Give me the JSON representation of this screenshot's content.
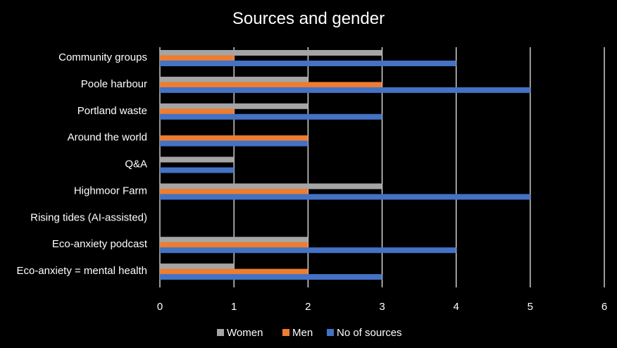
{
  "chart_data": {
    "type": "bar",
    "orientation": "horizontal",
    "title": "Sources and gender",
    "xlabel": "",
    "ylabel": "",
    "xlim": [
      0,
      6
    ],
    "ticks": [
      "0",
      "1",
      "2",
      "3",
      "4",
      "5",
      "6"
    ],
    "grid": "vertical",
    "legend_position": "bottom",
    "categories": [
      "Community groups",
      "Poole harbour",
      "Portland waste",
      "Around the world",
      "Q&A",
      "Highmoor Farm",
      "Rising tides (AI-assisted)",
      "Eco-anxiety podcast",
      "Eco-anxiety = mental health"
    ],
    "series": [
      {
        "name": "Women",
        "color": "#a5a5a5",
        "values": [
          3,
          2,
          2,
          0,
          1,
          3,
          0,
          2,
          1
        ]
      },
      {
        "name": "Men",
        "color": "#ed7d31",
        "values": [
          1,
          3,
          1,
          2,
          0,
          2,
          0,
          2,
          2
        ]
      },
      {
        "name": "No of sources",
        "color": "#4472c4",
        "values": [
          4,
          5,
          3,
          2,
          1,
          5,
          0,
          4,
          3
        ]
      }
    ]
  },
  "colors": {
    "background": "#000000",
    "text": "#ffffff",
    "gridline": "#ffffff"
  }
}
